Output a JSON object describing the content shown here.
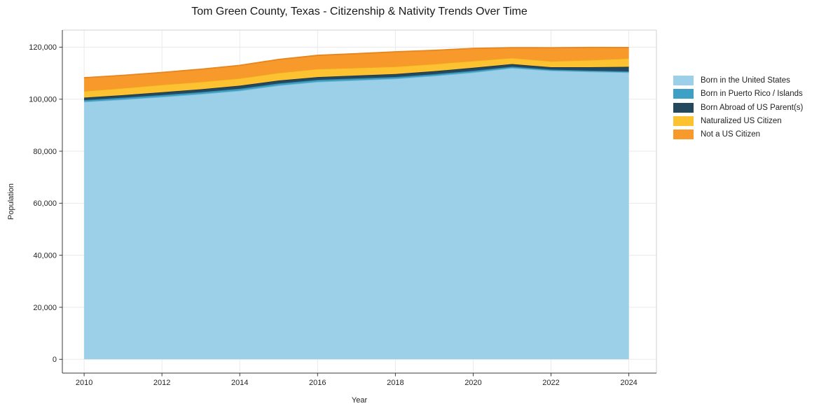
{
  "chart_data": {
    "type": "area",
    "stacked": true,
    "title": "Tom Green County, Texas - Citizenship & Nativity Trends Over Time",
    "xlabel": "Year",
    "ylabel": "Population",
    "x": [
      2010,
      2011,
      2012,
      2013,
      2014,
      2015,
      2016,
      2017,
      2018,
      2019,
      2020,
      2021,
      2022,
      2023,
      2024
    ],
    "series": [
      {
        "name": "Born in the United States",
        "color": "#9ccfe8",
        "edge": "#79b8d8",
        "values": [
          99000,
          99900,
          100900,
          102000,
          103300,
          105300,
          106700,
          107300,
          107900,
          109000,
          110300,
          112000,
          111000,
          110600,
          110300
        ]
      },
      {
        "name": "Born in Puerto Rico / Islands",
        "color": "#3da0c4",
        "edge": "#2e8bad",
        "values": [
          650,
          680,
          700,
          700,
          720,
          730,
          730,
          680,
          620,
          620,
          620,
          500,
          400,
          400,
          400
        ]
      },
      {
        "name": "Born Abroad of US Parent(s)",
        "color": "#24495e",
        "edge": "#1a3748",
        "values": [
          950,
          1000,
          1080,
          1130,
          1180,
          1150,
          1070,
          1120,
          1160,
          1160,
          1160,
          1000,
          900,
          1300,
          1750
        ]
      },
      {
        "name": "Naturalized US Citizen",
        "color": "#fdc232",
        "edge": "#f2a71f",
        "values": [
          2550,
          2700,
          2900,
          2900,
          2850,
          3000,
          3150,
          3000,
          2880,
          2800,
          2690,
          2400,
          2340,
          2800,
          3280
        ]
      },
      {
        "name": "Not a US Citizen",
        "color": "#f8992c",
        "edge": "#e7851e",
        "values": [
          5100,
          4900,
          4700,
          4800,
          4950,
          5100,
          5200,
          5400,
          5650,
          5200,
          4770,
          3900,
          5120,
          4800,
          4130
        ]
      }
    ],
    "xlim": [
      2009.44,
      2024.71
    ],
    "ylim": [
      -5300,
      126560
    ],
    "xticks": [
      2010,
      2012,
      2014,
      2016,
      2018,
      2020,
      2022,
      2024
    ],
    "yticks": [
      0,
      20000,
      40000,
      60000,
      80000,
      100000,
      120000
    ],
    "ytick_labels": [
      "0",
      "20,000",
      "40,000",
      "60,000",
      "80,000",
      "100,000",
      "120,000"
    ],
    "grid": true,
    "legend_position": "right of plot, no frame"
  }
}
